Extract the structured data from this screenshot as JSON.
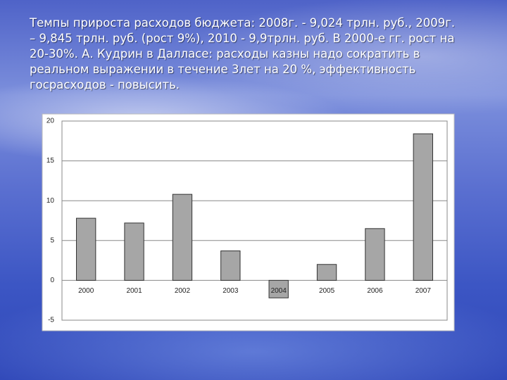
{
  "slide_text": "Темпы прироста расходов бюджета: 2008г. - 9,024 трлн. руб., 2009г. – 9,845 трлн. руб. (рост 9%), 2010 - 9,9трлн. руб. В 2000-е гг. рост на 20-30%. А. Кудрин в Далласе: расходы казны надо сократить в реальном выражении в течение 3лет на 20 %, эффективность госрасходов - повысить.",
  "chart_data": {
    "type": "bar",
    "categories": [
      "2000",
      "2001",
      "2002",
      "2003",
      "2004",
      "2005",
      "2006",
      "2007"
    ],
    "values": [
      7.8,
      7.2,
      10.8,
      3.7,
      -2.2,
      2.0,
      6.5,
      18.4
    ],
    "color": "#a6a6a6",
    "ylim": [
      -5,
      20
    ],
    "yticks": [
      -5,
      0,
      5,
      10,
      15,
      20
    ],
    "grid": true
  }
}
